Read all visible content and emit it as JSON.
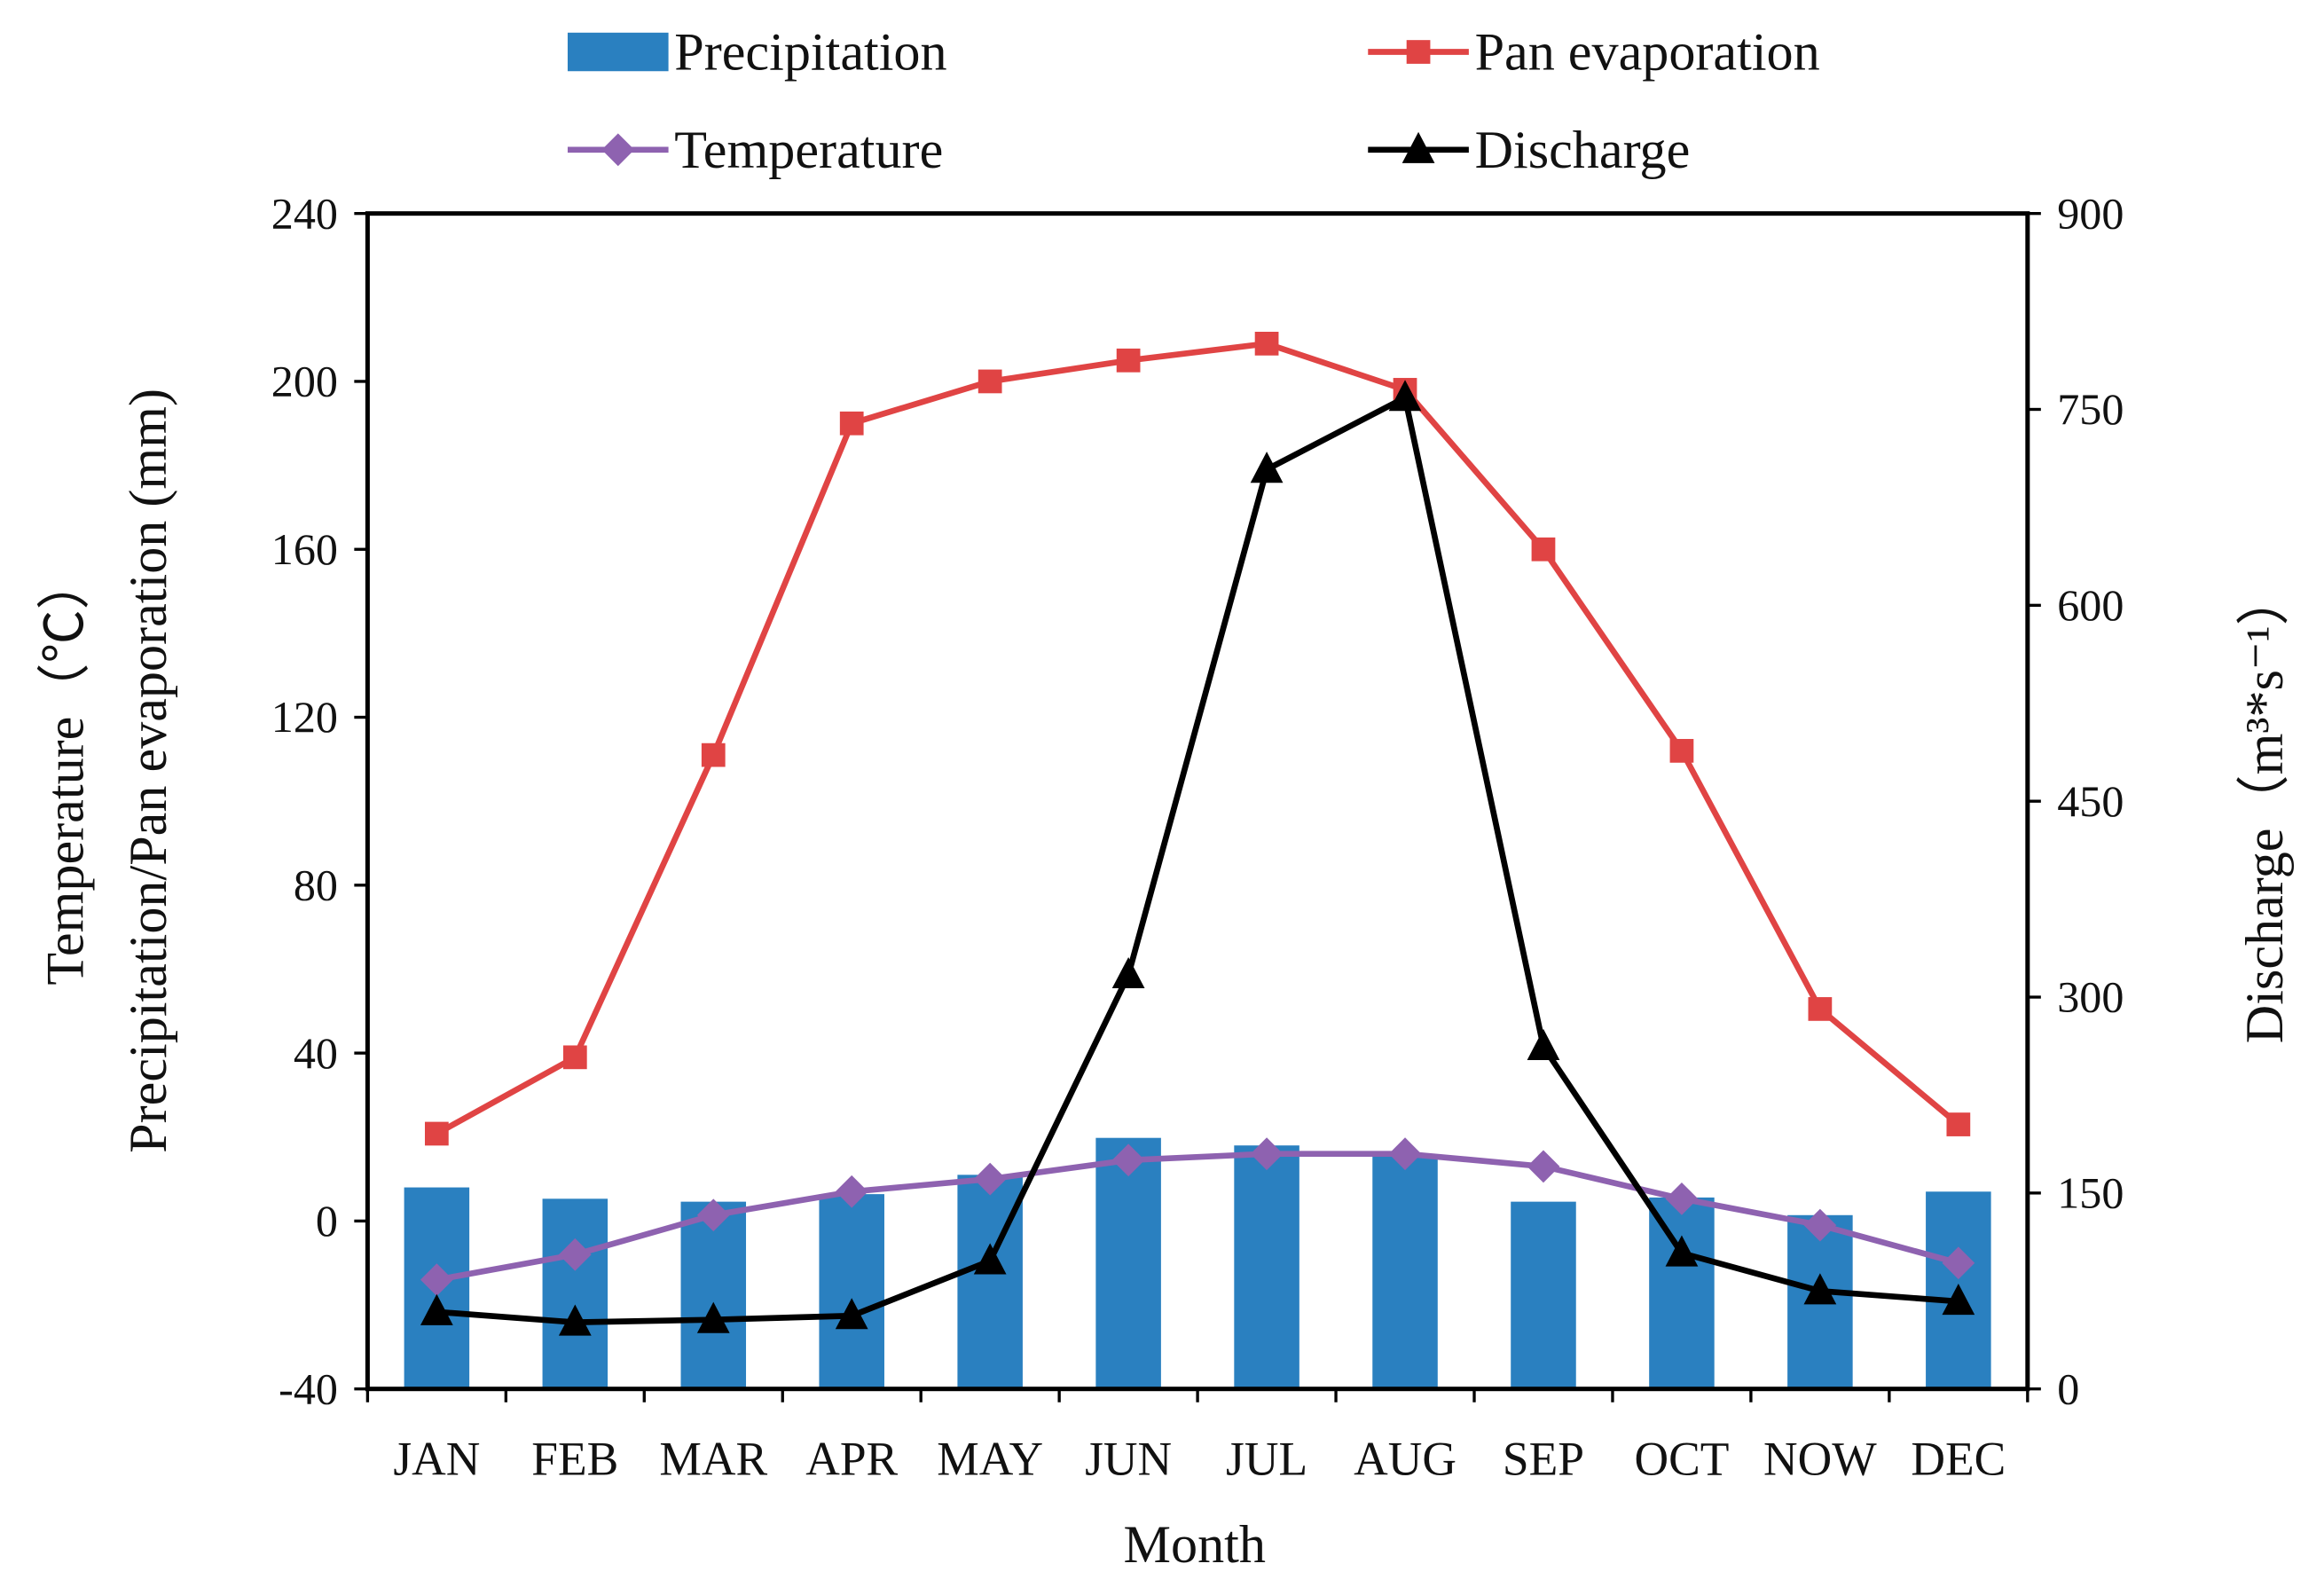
{
  "chart_data": {
    "type": "bar+line",
    "categories": [
      "JAN",
      "FEB",
      "MAR",
      "APR",
      "MAY",
      "JUN",
      "JUL",
      "AUG",
      "SEP",
      "OCT",
      "NOW",
      "DEC"
    ],
    "xlabel": "Month",
    "ylabel_left_line1": "Temperature（℃）",
    "ylabel_left_line2": "Precipitation/Pan evaporation (mm)",
    "ylabel_right": "Discharge（m³*s⁻¹）",
    "ylim_left": [
      -40,
      240
    ],
    "yticks_left": [
      "240",
      "200",
      "160",
      "120",
      "80",
      "40",
      "0",
      "-40"
    ],
    "ylim_right": [
      0,
      900
    ],
    "yticks_right": [
      "900",
      "750",
      "600",
      "450",
      "300",
      "150",
      "0"
    ],
    "legend_position": "top",
    "series": [
      {
        "name": "Precipitation",
        "type": "bar",
        "axis": "left",
        "color": "#2a80c0",
        "values": [
          8,
          5.3,
          4.6,
          6.4,
          11,
          19.8,
          18,
          15.5,
          4.6,
          5.6,
          1.4,
          7
        ]
      },
      {
        "name": "Pan evaporation",
        "type": "line",
        "axis": "left",
        "marker": "square",
        "color": "#e04444",
        "values": [
          20.8,
          39,
          111,
          190,
          200,
          205,
          209,
          198,
          160,
          112,
          50.5,
          23
        ]
      },
      {
        "name": "Temperature",
        "type": "line",
        "axis": "left",
        "marker": "diamond",
        "color": "#8e62b0",
        "values": [
          -14,
          -8,
          1.4,
          7,
          10,
          14.5,
          16,
          16,
          13,
          5.3,
          -1,
          -10
        ]
      },
      {
        "name": "Discharge",
        "type": "line",
        "axis": "right",
        "marker": "triangle",
        "color": "#000000",
        "values": [
          59,
          51,
          53,
          56,
          98,
          317,
          704,
          759,
          262,
          104,
          75,
          67
        ]
      }
    ]
  }
}
